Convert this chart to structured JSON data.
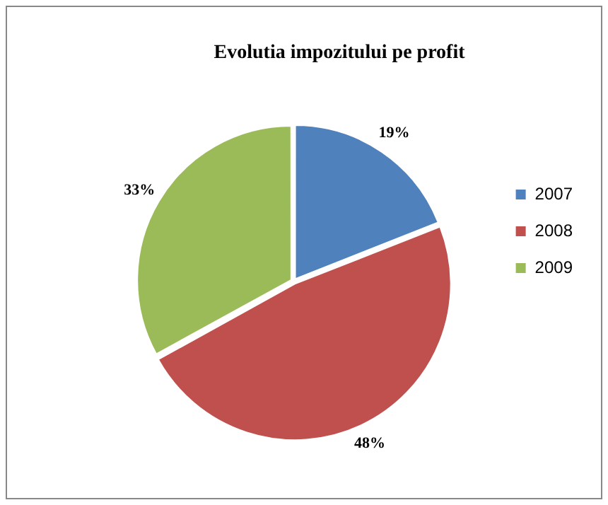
{
  "chart_data": {
    "type": "pie",
    "title": "Evolutia impozitului pe profit",
    "categories": [
      "2007",
      "2008",
      "2009"
    ],
    "values": [
      19,
      48,
      33
    ],
    "value_labels": [
      "19%",
      "48%",
      "33%"
    ],
    "colors": [
      "#4f81bd",
      "#c0504d",
      "#9bbb59"
    ],
    "legend": "right"
  }
}
